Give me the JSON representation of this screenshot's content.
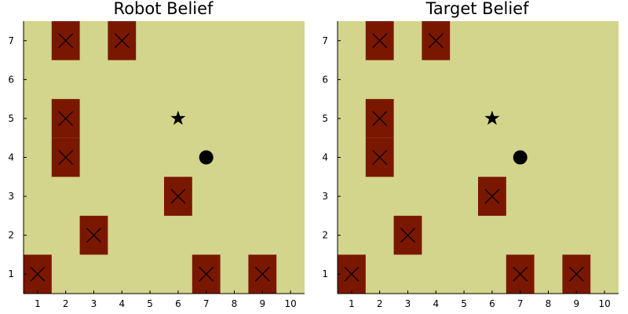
{
  "colors": {
    "background": "#ffffff",
    "free_cell": "#d2d58b",
    "obstacle": "#7a1700",
    "mark": "#000000",
    "axis": "#000000"
  },
  "chart_data": [
    {
      "type": "grid",
      "title": "Robot Belief",
      "xlim": [
        0.5,
        10.5
      ],
      "ylim": [
        0.5,
        7.5
      ],
      "xticks": [
        1,
        2,
        3,
        4,
        5,
        6,
        7,
        8,
        9,
        10
      ],
      "yticks": [
        1,
        2,
        3,
        4,
        5,
        6,
        7
      ],
      "grid": false,
      "obstacles": [
        [
          1,
          1
        ],
        [
          2,
          4
        ],
        [
          2,
          5
        ],
        [
          2,
          7
        ],
        [
          3,
          2
        ],
        [
          4,
          7
        ],
        [
          6,
          3
        ],
        [
          7,
          1
        ],
        [
          9,
          1
        ]
      ],
      "star": [
        6,
        5
      ],
      "circle": [
        7,
        4
      ]
    },
    {
      "type": "grid",
      "title": "Target Belief",
      "xlim": [
        0.5,
        10.5
      ],
      "ylim": [
        0.5,
        7.5
      ],
      "xticks": [
        1,
        2,
        3,
        4,
        5,
        6,
        7,
        8,
        9,
        10
      ],
      "yticks": [
        1,
        2,
        3,
        4,
        5,
        6,
        7
      ],
      "grid": false,
      "obstacles": [
        [
          1,
          1
        ],
        [
          2,
          4
        ],
        [
          2,
          5
        ],
        [
          2,
          7
        ],
        [
          3,
          2
        ],
        [
          4,
          7
        ],
        [
          6,
          3
        ],
        [
          7,
          1
        ],
        [
          9,
          1
        ]
      ],
      "star": [
        6,
        5
      ],
      "circle": [
        7,
        4
      ]
    }
  ]
}
